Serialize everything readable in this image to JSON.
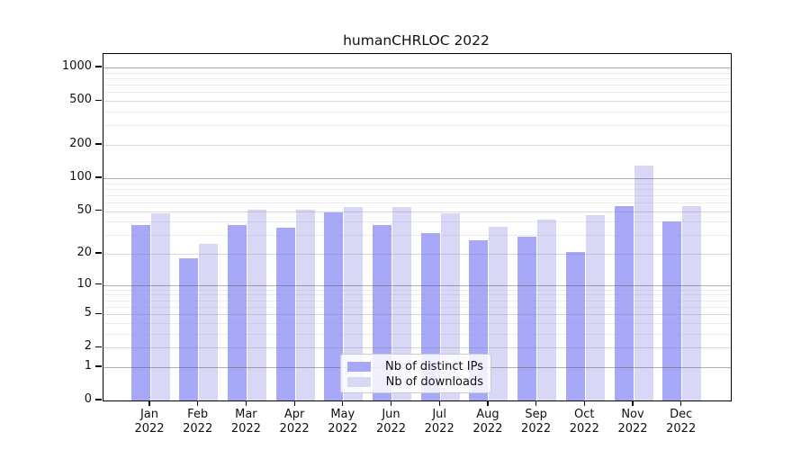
{
  "title": "humanCHRLOC 2022",
  "colors": {
    "distinct_ips": "#a8a8f8",
    "downloads": "#d8d8f6"
  },
  "legend": {
    "items": [
      {
        "label": "Nb of distinct IPs",
        "color_key": "distinct_ips"
      },
      {
        "label": "Nb of downloads",
        "color_key": "downloads"
      }
    ]
  },
  "chart_data": {
    "type": "bar",
    "title": "humanCHRLOC 2022",
    "categories": [
      "Jan 2022",
      "Feb 2022",
      "Mar 2022",
      "Apr 2022",
      "May 2022",
      "Jun 2022",
      "Jul 2022",
      "Aug 2022",
      "Sep 2022",
      "Oct 2022",
      "Nov 2022",
      "Dec 2022"
    ],
    "series": [
      {
        "name": "Nb of distinct IPs",
        "color": "#a8a8f8",
        "values": [
          37,
          18,
          37,
          35,
          49,
          37,
          31,
          27,
          29,
          21,
          56,
          40
        ]
      },
      {
        "name": "Nb of downloads",
        "color": "#d8d8f6",
        "values": [
          48,
          25,
          51,
          51,
          54,
          54,
          48,
          36,
          42,
          46,
          130,
          55
        ]
      }
    ],
    "yscale": "log10(value+1)",
    "yticks": [
      0,
      1,
      2,
      5,
      10,
      20,
      50,
      100,
      200,
      500,
      1000
    ],
    "ylim": [
      0,
      1320
    ],
    "grid": "horizontal",
    "legend_position": "lower center"
  }
}
